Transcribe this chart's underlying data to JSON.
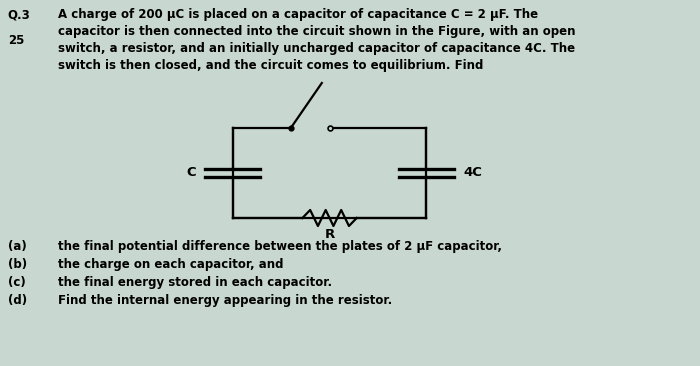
{
  "background_color": "#c8d8d0",
  "title_q": "Q.3",
  "title_num": "25",
  "header_text": "A charge of 200 μC is placed on a capacitor of capacitance C = 2 μF. The\ncapacitor is then connected into the circuit shown in the Figure, with an open\nswitch, a resistor, and an initially uncharged capacitor of capacitance 4C. The\nswitch is then closed, and the circuit comes to equilibrium. Find",
  "label_C": "C",
  "label_4C": "4C",
  "label_R": "R",
  "questions": [
    [
      "(a)",
      "the final potential difference between the plates of 2 μF capacitor,"
    ],
    [
      "(b)",
      "the charge on each capacitor, and"
    ],
    [
      "(c)",
      "the final energy stored in each capacitor."
    ],
    [
      "(d)",
      "Find the internal energy appearing in the resistor."
    ]
  ],
  "lw": 1.6,
  "font_size_header": 8.5,
  "font_size_labels": 9.5,
  "font_size_questions": 8.5
}
